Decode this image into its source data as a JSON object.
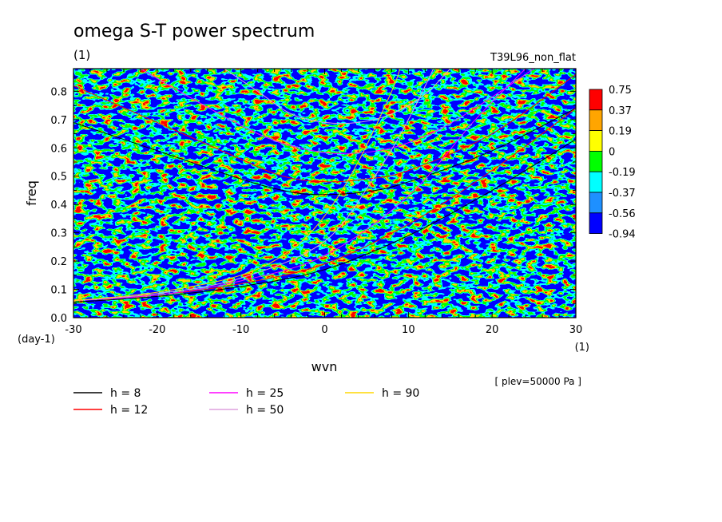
{
  "chart_data": {
    "type": "heatmap",
    "title": "omega S-T power spectrum",
    "unit_label": "(1)",
    "run_label": "T39L96_non_flat",
    "xlabel": "wvn",
    "xunit": "(1)",
    "ylabel": "freq",
    "yunit": "(day-1)",
    "level_note": "[ plev=50000 Pa ]",
    "xlim": [
      -30,
      30
    ],
    "ylim": [
      0,
      0.88
    ],
    "xticks": [
      "-30",
      "-20",
      "-10",
      "0",
      "10",
      "20",
      "30"
    ],
    "yticks": [
      "0.0",
      "0.1",
      "0.2",
      "0.3",
      "0.4",
      "0.5",
      "0.6",
      "0.7",
      "0.8"
    ],
    "colorbar": {
      "levels": [
        "0.75",
        "0.37",
        "0.19",
        "0",
        "-0.19",
        "-0.37",
        "-0.56",
        "-0.94"
      ],
      "colors": [
        "#ff0000",
        "#ffa500",
        "#ffff00",
        "#00ff00",
        "#00ffff",
        "#1e90ff",
        "#0000ff"
      ]
    },
    "heatmap_note": "noisy field dominated by yellow (0 to 0.19) and green (-0.19 to 0) with scattered orange, cyan, blue and red spots",
    "legend": [
      {
        "label": "h =  8",
        "color": "#000000"
      },
      {
        "label": "h = 12",
        "color": "#ff0000"
      },
      {
        "label": "h = 25",
        "color": "#ff00ff"
      },
      {
        "label": "h = 50",
        "color": "#dda0dd"
      },
      {
        "label": "h = 90",
        "color": "#ffd700"
      }
    ],
    "dispersion_curves": [
      {
        "name": "h = 8",
        "color": "#000000",
        "kind": "u-shaped",
        "points": [
          [
            -30,
            0.69
          ],
          [
            -20,
            0.59
          ],
          [
            -10,
            0.49
          ],
          [
            -5,
            0.45
          ],
          [
            -1,
            0.435
          ],
          [
            5,
            0.445
          ],
          [
            10,
            0.48
          ],
          [
            20,
            0.59
          ],
          [
            30,
            0.74
          ]
        ]
      },
      {
        "name": "h = 12",
        "color": "#ff0000",
        "kind": "u-shaped",
        "points": [
          [
            -30,
            0.82
          ],
          [
            -20,
            0.69
          ],
          [
            -10,
            0.56
          ],
          [
            -5,
            0.5
          ],
          [
            0,
            0.48
          ],
          [
            5,
            0.49
          ],
          [
            10,
            0.52
          ],
          [
            20,
            0.65
          ],
          [
            30,
            0.86
          ]
        ]
      },
      {
        "name": "h = 25",
        "color": "#ff00ff",
        "kind": "u-shaped",
        "points": [
          [
            -22,
            0.88
          ],
          [
            -15,
            0.76
          ],
          [
            -8,
            0.65
          ],
          [
            -3,
            0.6
          ],
          [
            2,
            0.58
          ],
          [
            8,
            0.6
          ],
          [
            14,
            0.67
          ],
          [
            20,
            0.78
          ],
          [
            25,
            0.88
          ]
        ]
      },
      {
        "name": "h = 50",
        "color": "#dda0dd",
        "kind": "u-shaped",
        "points": [
          [
            -12,
            0.88
          ],
          [
            -8,
            0.8
          ],
          [
            -4,
            0.72
          ],
          [
            0,
            0.69
          ],
          [
            4,
            0.69
          ],
          [
            8,
            0.72
          ],
          [
            12,
            0.79
          ],
          [
            15,
            0.88
          ]
        ]
      },
      {
        "name": "h = 8",
        "color": "#000000",
        "kind": "rising",
        "points": [
          [
            -30,
            0.055
          ],
          [
            -20,
            0.075
          ],
          [
            -10,
            0.11
          ],
          [
            0,
            0.17
          ],
          [
            10,
            0.29
          ],
          [
            20,
            0.45
          ],
          [
            30,
            0.63
          ]
        ]
      },
      {
        "name": "h = 12",
        "color": "#ff0000",
        "kind": "rising",
        "points": [
          [
            -30,
            0.06
          ],
          [
            -20,
            0.08
          ],
          [
            -10,
            0.12
          ],
          [
            0,
            0.19
          ],
          [
            10,
            0.33
          ],
          [
            20,
            0.52
          ],
          [
            30,
            0.74
          ]
        ]
      },
      {
        "name": "h = 25",
        "color": "#ff00ff",
        "kind": "rising",
        "points": [
          [
            -30,
            0.06
          ],
          [
            -20,
            0.08
          ],
          [
            -10,
            0.13
          ],
          [
            0,
            0.22
          ],
          [
            10,
            0.43
          ],
          [
            18,
            0.7
          ],
          [
            24,
            0.88
          ]
        ]
      },
      {
        "name": "h = 50",
        "color": "#dda0dd",
        "kind": "rising",
        "points": [
          [
            -30,
            0.06
          ],
          [
            -20,
            0.085
          ],
          [
            -10,
            0.14
          ],
          [
            0,
            0.27
          ],
          [
            6,
            0.5
          ],
          [
            10,
            0.7
          ],
          [
            13,
            0.88
          ]
        ]
      },
      {
        "name": "h = 90",
        "color": "#ffd700",
        "kind": "rising",
        "points": [
          [
            -30,
            0.06
          ],
          [
            -20,
            0.09
          ],
          [
            -10,
            0.15
          ],
          [
            -4,
            0.24
          ],
          [
            0,
            0.36
          ],
          [
            4,
            0.55
          ],
          [
            8,
            0.8
          ],
          [
            9,
            0.88
          ]
        ]
      }
    ]
  }
}
